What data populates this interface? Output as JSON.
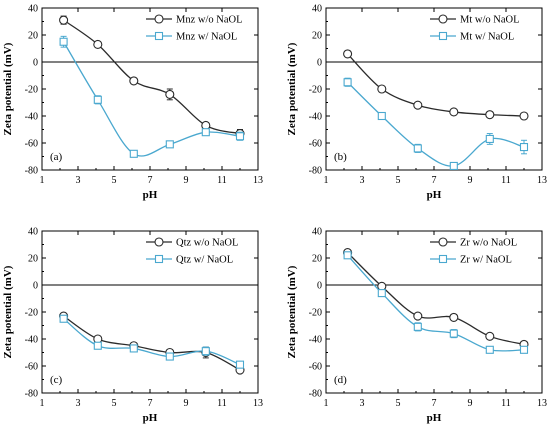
{
  "figure": {
    "series_colors": {
      "without": "#2b2b2b",
      "with": "#4aa8cf"
    }
  },
  "chart_data": [
    {
      "type": "line",
      "panel_label": "(a)",
      "xlabel": "pH",
      "ylabel": "Zeta potential (mV)",
      "xlim": [
        1,
        13
      ],
      "ylim": [
        -80,
        40
      ],
      "xticks": [
        1,
        3,
        5,
        7,
        9,
        11,
        13
      ],
      "yticks": [
        -80,
        -60,
        -40,
        -20,
        0,
        20,
        40
      ],
      "legend_position": "top-right",
      "series": [
        {
          "name": "Mnz w/o NaOL",
          "marker": "circle",
          "color": "#2b2b2b",
          "x": [
            2.2,
            4.1,
            6.1,
            8.1,
            10.1,
            12.0
          ],
          "y": [
            31,
            13,
            -14,
            -24,
            -47,
            -53
          ],
          "error": [
            3,
            2,
            2,
            4,
            2,
            3
          ]
        },
        {
          "name": "Mnz w/ NaOL",
          "marker": "square",
          "color": "#4aa8cf",
          "x": [
            2.2,
            4.1,
            6.1,
            8.1,
            10.1,
            12.0
          ],
          "y": [
            15,
            -28,
            -68,
            -61,
            -52,
            -55
          ],
          "error": [
            4,
            3,
            1,
            2,
            2,
            3
          ]
        }
      ]
    },
    {
      "type": "line",
      "panel_label": "(b)",
      "xlabel": "pH",
      "ylabel": "Zeta potential (mV)",
      "xlim": [
        1,
        13
      ],
      "ylim": [
        -80,
        40
      ],
      "xticks": [
        1,
        3,
        5,
        7,
        9,
        11,
        13
      ],
      "yticks": [
        -80,
        -60,
        -40,
        -20,
        0,
        20,
        40
      ],
      "legend_position": "top-right",
      "series": [
        {
          "name": "Mt w/o NaOL",
          "marker": "circle",
          "color": "#2b2b2b",
          "x": [
            2.2,
            4.1,
            6.1,
            8.1,
            10.1,
            12.0
          ],
          "y": [
            6,
            -20,
            -32,
            -37,
            -39,
            -40
          ],
          "error": [
            1,
            1,
            2,
            1,
            1,
            2
          ]
        },
        {
          "name": "Mt w/ NaOL",
          "marker": "square",
          "color": "#4aa8cf",
          "x": [
            2.2,
            4.1,
            6.1,
            8.1,
            10.1,
            12.0
          ],
          "y": [
            -15,
            -40,
            -64,
            -77,
            -57,
            -63
          ],
          "error": [
            3,
            2,
            3,
            2,
            4,
            5
          ]
        }
      ]
    },
    {
      "type": "line",
      "panel_label": "(c)",
      "xlabel": "pH",
      "ylabel": "Zeta potential (mV)",
      "xlim": [
        1,
        13
      ],
      "ylim": [
        -80,
        40
      ],
      "xticks": [
        1,
        3,
        5,
        7,
        9,
        11,
        13
      ],
      "yticks": [
        -80,
        -60,
        -40,
        -20,
        0,
        20,
        40
      ],
      "legend_position": "top-right",
      "series": [
        {
          "name": "Qtz w/o NaOL",
          "marker": "circle",
          "color": "#2b2b2b",
          "x": [
            2.2,
            4.1,
            6.1,
            8.1,
            10.1,
            12.0
          ],
          "y": [
            -23,
            -40,
            -45,
            -50,
            -50,
            -63
          ],
          "error": [
            1,
            2,
            1,
            2,
            4,
            2
          ]
        },
        {
          "name": "Qtz w/ NaOL",
          "marker": "square",
          "color": "#4aa8cf",
          "x": [
            2.2,
            4.1,
            6.1,
            8.1,
            10.1,
            12.0
          ],
          "y": [
            -25,
            -45,
            -47,
            -53,
            -49,
            -59
          ],
          "error": [
            2,
            2,
            2,
            2,
            3,
            2
          ]
        }
      ]
    },
    {
      "type": "line",
      "panel_label": "(d)",
      "xlabel": "pH",
      "ylabel": "Zeta potential (mV)",
      "xlim": [
        1,
        13
      ],
      "ylim": [
        -80,
        40
      ],
      "xticks": [
        1,
        3,
        5,
        7,
        9,
        11,
        13
      ],
      "yticks": [
        -80,
        -60,
        -40,
        -20,
        0,
        20,
        40
      ],
      "legend_position": "top-right",
      "series": [
        {
          "name": "Zr w/o NaOL",
          "marker": "circle",
          "color": "#2b2b2b",
          "x": [
            2.2,
            4.1,
            6.1,
            8.1,
            10.1,
            12.0
          ],
          "y": [
            24,
            -1,
            -23,
            -24,
            -38,
            -44
          ],
          "error": [
            1,
            1,
            1,
            1,
            1,
            2
          ]
        },
        {
          "name": "Zr w/ NaOL",
          "marker": "square",
          "color": "#4aa8cf",
          "x": [
            2.2,
            4.1,
            6.1,
            8.1,
            10.1,
            12.0
          ],
          "y": [
            22,
            -6,
            -31,
            -36,
            -48,
            -48
          ],
          "error": [
            2,
            2,
            3,
            3,
            1,
            1
          ]
        }
      ]
    }
  ]
}
